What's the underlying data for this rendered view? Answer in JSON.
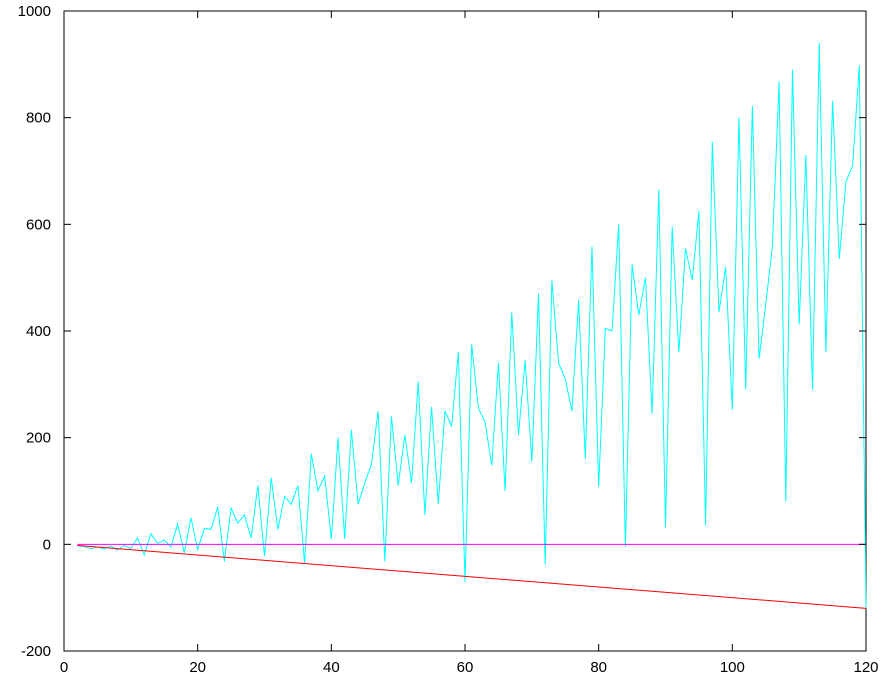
{
  "chart_data": {
    "type": "line",
    "title": "",
    "xlabel": "",
    "ylabel": "",
    "xlim": [
      0,
      120
    ],
    "ylim": [
      -200,
      1000
    ],
    "x_ticks": [
      0,
      20,
      40,
      60,
      80,
      100,
      120
    ],
    "y_ticks": [
      -200,
      0,
      200,
      400,
      600,
      800,
      1000
    ],
    "x_tick_labels": [
      "0",
      "20",
      "40",
      "60",
      "80",
      "100",
      "120"
    ],
    "y_tick_labels": [
      "-200",
      "0",
      "200",
      "400",
      "600",
      "800",
      "1000"
    ],
    "grid": false,
    "legend": "none",
    "series": [
      {
        "color": "#00ffff",
        "x": [
          2,
          3,
          4,
          5,
          6,
          7,
          8,
          9,
          10,
          11,
          12,
          13,
          14,
          15,
          16,
          17,
          18,
          19,
          20,
          21,
          22,
          23,
          24,
          25,
          26,
          27,
          28,
          29,
          30,
          31,
          32,
          33,
          34,
          35,
          36,
          37,
          38,
          39,
          40,
          41,
          42,
          43,
          44,
          45,
          46,
          47,
          48,
          49,
          50,
          51,
          52,
          53,
          54,
          55,
          56,
          57,
          58,
          59,
          60,
          61,
          62,
          63,
          64,
          65,
          66,
          67,
          68,
          69,
          70,
          71,
          72,
          73,
          74,
          75,
          76,
          77,
          78,
          79,
          80,
          81,
          82,
          83,
          84,
          85,
          86,
          87,
          88,
          89,
          90,
          91,
          92,
          93,
          94,
          95,
          96,
          97,
          98,
          99,
          100,
          101,
          102,
          103,
          104,
          105,
          106,
          107,
          108,
          109,
          110,
          111,
          112,
          113,
          114,
          115,
          116,
          117,
          118,
          119,
          120
        ],
        "y": [
          -3,
          -4,
          -8,
          -5,
          -9,
          -3,
          -11,
          -2,
          -8,
          12,
          -20,
          20,
          2,
          8,
          -5,
          38,
          -16,
          50,
          -10,
          30,
          28,
          70,
          -32,
          68,
          40,
          55,
          12,
          110,
          -22,
          125,
          28,
          90,
          75,
          110,
          -35,
          170,
          100,
          128,
          10,
          200,
          10,
          215,
          75,
          115,
          150,
          250,
          -32,
          240,
          110,
          205,
          115,
          305,
          55,
          258,
          75,
          250,
          222,
          360,
          -70,
          375,
          255,
          230,
          148,
          340,
          100,
          435,
          205,
          345,
          155,
          470,
          -38,
          495,
          340,
          310,
          250,
          458,
          160,
          558,
          108,
          405,
          400,
          600,
          -5,
          525,
          430,
          500,
          245,
          665,
          30,
          595,
          360,
          555,
          495,
          625,
          35,
          755,
          435,
          520,
          252,
          800,
          290,
          822,
          348,
          450,
          560,
          868,
          80,
          890,
          412,
          730,
          290,
          940,
          360,
          832,
          535,
          680,
          710,
          898,
          -120
        ]
      },
      {
        "color": "#ff00ff",
        "x": [
          2,
          120
        ],
        "y": [
          0,
          0
        ]
      },
      {
        "color": "#ff0000",
        "x": [
          2,
          120
        ],
        "y": [
          -2,
          -120
        ]
      }
    ]
  }
}
